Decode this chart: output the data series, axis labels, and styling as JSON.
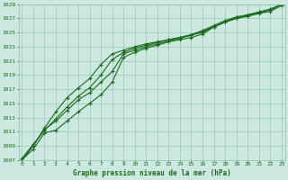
{
  "xlabel": "Graphe pression niveau de la mer (hPa)",
  "ylim": [
    1007,
    1029
  ],
  "xlim": [
    -0.3,
    23.3
  ],
  "yticks": [
    1007,
    1009,
    1011,
    1013,
    1015,
    1017,
    1019,
    1021,
    1023,
    1025,
    1027,
    1029
  ],
  "xticks": [
    0,
    1,
    2,
    3,
    4,
    5,
    6,
    7,
    8,
    9,
    10,
    11,
    12,
    13,
    14,
    15,
    16,
    17,
    18,
    19,
    20,
    21,
    22,
    23
  ],
  "bg_color": "#cce8e0",
  "grid_color": "#88c4a8",
  "line_color": "#1a6b1a",
  "line1": [
    1007.0,
    1008.5,
    1010.8,
    1011.2,
    1012.5,
    1013.8,
    1015.0,
    1016.2,
    1018.0,
    1021.5,
    1022.2,
    1022.8,
    1023.2,
    1023.7,
    1024.0,
    1024.3,
    1024.8,
    1025.8,
    1026.5,
    1027.0,
    1027.3,
    1027.7,
    1028.0,
    1028.8
  ],
  "line2": [
    1007.2,
    1009.2,
    1011.2,
    1012.8,
    1014.5,
    1016.0,
    1017.2,
    1019.0,
    1021.2,
    1022.2,
    1022.8,
    1023.2,
    1023.6,
    1024.0,
    1024.3,
    1024.7,
    1025.3,
    1026.0,
    1026.7,
    1027.2,
    1027.5,
    1027.9,
    1028.3,
    1029.0
  ],
  "line3": [
    1007.0,
    1009.0,
    1011.5,
    1013.8,
    1015.8,
    1017.2,
    1018.5,
    1020.5,
    1022.0,
    1022.5,
    1023.0,
    1023.4,
    1023.7,
    1024.0,
    1024.3,
    1024.7,
    1025.0,
    1025.8,
    1026.5,
    1027.2,
    1027.5,
    1027.9,
    1028.3,
    1029.0
  ],
  "line4": [
    1007.0,
    1009.0,
    1011.3,
    1012.5,
    1014.0,
    1015.5,
    1016.5,
    1018.0,
    1019.5,
    1022.0,
    1022.5,
    1023.0,
    1023.4,
    1023.8,
    1024.2,
    1024.6,
    1025.2,
    1025.8,
    1026.5,
    1027.0,
    1027.4,
    1027.8,
    1028.2,
    1029.0
  ]
}
